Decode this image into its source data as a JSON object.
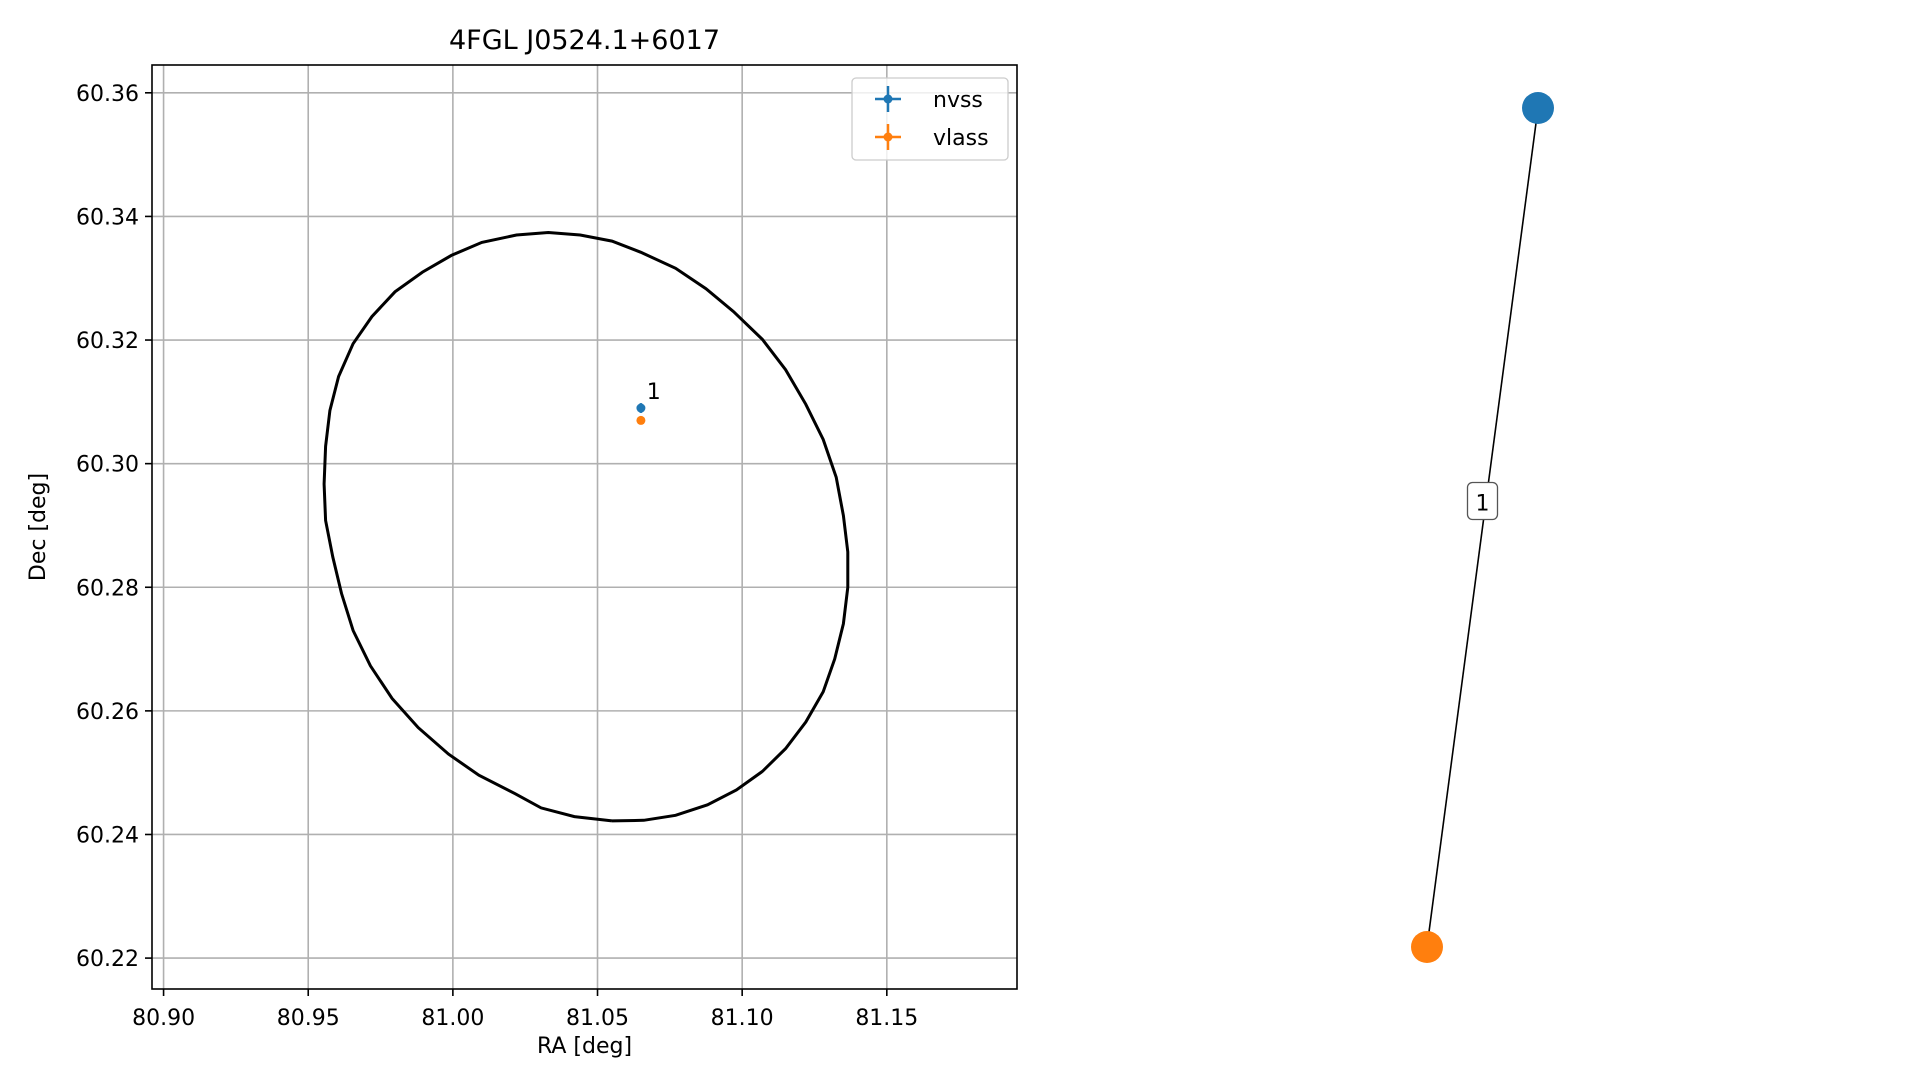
{
  "chart_data": [
    {
      "type": "scatter",
      "title": "4FGL J0524.1+6017",
      "xlabel": "RA [deg]",
      "ylabel": "Dec [deg]",
      "xlim": [
        80.896,
        81.195
      ],
      "ylim": [
        60.215,
        60.3645
      ],
      "grid": true,
      "xticks": [
        80.9,
        80.95,
        81.0,
        81.05,
        81.1,
        81.15
      ],
      "xtick_labels": [
        "80.90",
        "80.95",
        "81.00",
        "81.05",
        "81.10",
        "81.15"
      ],
      "yticks": [
        60.22,
        60.24,
        60.26,
        60.28,
        60.3,
        60.32,
        60.34,
        60.36
      ],
      "ytick_labels": [
        "60.22",
        "60.24",
        "60.26",
        "60.28",
        "60.30",
        "60.32",
        "60.34",
        "60.36"
      ],
      "legend": {
        "placement": "top-right",
        "entries": [
          "nvss",
          "vlass"
        ]
      },
      "series": [
        {
          "name": "nvss",
          "color": "#1f77b4",
          "marker": "errorbar-point",
          "points": [
            {
              "x": 81.065,
              "y": 60.309,
              "yerr": 0.0008,
              "xerr": 0.0004
            }
          ]
        },
        {
          "name": "vlass",
          "color": "#ff7f0e",
          "marker": "errorbar-point",
          "points": [
            {
              "x": 81.065,
              "y": 60.307,
              "yerr": 0.0002,
              "xerr": 0.0002
            }
          ]
        }
      ],
      "ellipse": {
        "color": "#000000",
        "points": [
          [
            81.055,
            60.2422
          ],
          [
            81.066,
            60.2423
          ],
          [
            81.077,
            60.2431
          ],
          [
            81.088,
            60.2448
          ],
          [
            81.098,
            60.2472
          ],
          [
            81.107,
            60.2502
          ],
          [
            81.115,
            60.2539
          ],
          [
            81.122,
            60.2582
          ],
          [
            81.128,
            60.2631
          ],
          [
            81.132,
            60.2684
          ],
          [
            81.135,
            60.2741
          ],
          [
            81.1365,
            60.28
          ],
          [
            81.1365,
            60.2857
          ],
          [
            81.135,
            60.2916
          ],
          [
            81.1325,
            60.2978
          ],
          [
            81.128,
            60.3039
          ],
          [
            81.122,
            60.3096
          ],
          [
            81.115,
            60.3152
          ],
          [
            81.107,
            60.3201
          ],
          [
            81.097,
            60.3246
          ],
          [
            81.0875,
            60.3283
          ],
          [
            81.077,
            60.3316
          ],
          [
            81.065,
            60.3342
          ],
          [
            81.055,
            60.336
          ],
          [
            81.044,
            60.337
          ],
          [
            81.033,
            60.3374
          ],
          [
            81.022,
            60.337
          ],
          [
            81.01,
            60.3358
          ],
          [
            80.9995,
            60.3337
          ],
          [
            80.9895,
            60.331
          ],
          [
            80.98,
            60.3278
          ],
          [
            80.972,
            60.3238
          ],
          [
            80.9655,
            60.3194
          ],
          [
            80.9605,
            60.3141
          ],
          [
            80.9575,
            60.3086
          ],
          [
            80.956,
            60.3028
          ],
          [
            80.9555,
            60.2967
          ],
          [
            80.956,
            60.2908
          ],
          [
            80.9585,
            60.2849
          ],
          [
            80.9615,
            60.279
          ],
          [
            80.9655,
            60.273
          ],
          [
            80.9715,
            60.2673
          ],
          [
            80.979,
            60.262
          ],
          [
            80.988,
            60.2573
          ],
          [
            80.9985,
            60.253
          ],
          [
            81.009,
            60.2496
          ],
          [
            81.0215,
            60.2466
          ],
          [
            81.0305,
            60.2443
          ],
          [
            81.042,
            60.2429
          ],
          [
            81.055,
            60.2422
          ]
        ]
      },
      "annotations": [
        {
          "text": "1",
          "x": 81.067,
          "y": 60.3105
        }
      ]
    },
    {
      "type": "network",
      "nodes": [
        {
          "id": "nvss",
          "color": "#1f77b4"
        },
        {
          "id": "vlass",
          "color": "#ff7f0e"
        }
      ],
      "edges": [
        {
          "source": "nvss",
          "target": "vlass",
          "label": "1"
        }
      ]
    }
  ]
}
